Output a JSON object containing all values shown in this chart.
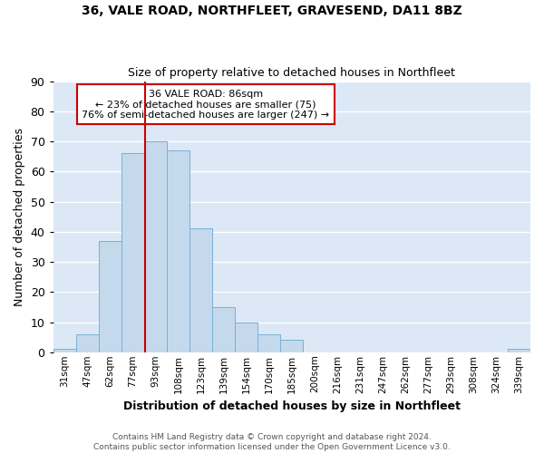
{
  "title1": "36, VALE ROAD, NORTHFLEET, GRAVESEND, DA11 8BZ",
  "title2": "Size of property relative to detached houses in Northfleet",
  "xlabel": "Distribution of detached houses by size in Northfleet",
  "ylabel": "Number of detached properties",
  "bins": [
    "31sqm",
    "47sqm",
    "62sqm",
    "77sqm",
    "93sqm",
    "108sqm",
    "123sqm",
    "139sqm",
    "154sqm",
    "170sqm",
    "185sqm",
    "200sqm",
    "216sqm",
    "231sqm",
    "247sqm",
    "262sqm",
    "277sqm",
    "293sqm",
    "308sqm",
    "324sqm",
    "339sqm"
  ],
  "values": [
    1,
    6,
    37,
    66,
    70,
    67,
    41,
    15,
    10,
    6,
    4,
    0,
    0,
    0,
    0,
    0,
    0,
    0,
    0,
    0,
    1
  ],
  "bar_color": "#c5d9ed",
  "bar_edge_color": "#7aafd4",
  "vline_color": "#cc0000",
  "annotation_line1": "36 VALE ROAD: 86sqm",
  "annotation_line2": "← 23% of detached houses are smaller (75)",
  "annotation_line3": "76% of semi-detached houses are larger (247) →",
  "annot_box_color": "#ffffff",
  "annot_box_edgecolor": "#cc0000",
  "footer1": "Contains HM Land Registry data © Crown copyright and database right 2024.",
  "footer2": "Contains public sector information licensed under the Open Government Licence v3.0.",
  "ylim": [
    0,
    90
  ],
  "fig_bg": "#ffffff",
  "axes_bg": "#dce8f5"
}
